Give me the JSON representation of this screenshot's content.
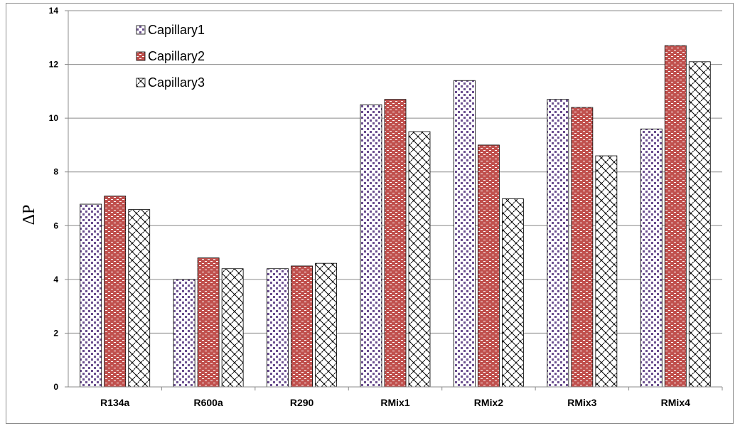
{
  "chart_data": {
    "type": "bar",
    "title": "",
    "xlabel": "",
    "ylabel": "ΔP",
    "ylim": [
      0,
      14
    ],
    "yticks": [
      0,
      2,
      4,
      6,
      8,
      10,
      12,
      14
    ],
    "grid": "horizontal",
    "legend_position": "top-left",
    "categories": [
      "R134a",
      "R600a",
      "R290",
      "RMix1",
      "RMix2",
      "RMix3",
      "RMix4"
    ],
    "series": [
      {
        "name": "Capillary1",
        "values": [
          6.8,
          4.0,
          4.4,
          10.5,
          11.4,
          10.7,
          9.6
        ],
        "color": "#6b4f8f",
        "pattern": "dots"
      },
      {
        "name": "Capillary2",
        "values": [
          7.1,
          4.8,
          4.5,
          10.7,
          9.0,
          10.4,
          12.7
        ],
        "color": "#c0504d",
        "pattern": "bricks"
      },
      {
        "name": "Capillary3",
        "values": [
          6.6,
          4.4,
          4.6,
          9.5,
          7.0,
          8.6,
          12.1
        ],
        "color": "#000000",
        "pattern": "zigzag"
      }
    ]
  }
}
